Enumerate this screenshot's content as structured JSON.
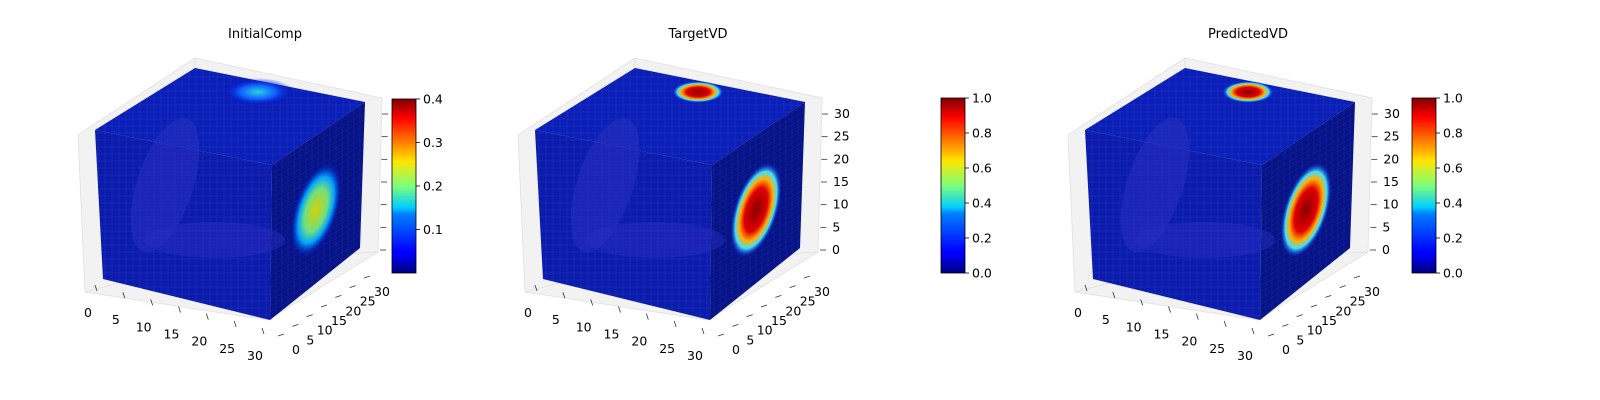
{
  "chart_data": [
    {
      "type": "voxel3d",
      "title": "InitialComp",
      "x_ticks": [
        "0",
        "5",
        "10",
        "15",
        "20",
        "25",
        "30"
      ],
      "y_ticks": [
        "0",
        "5",
        "10",
        "15",
        "20",
        "25",
        "30"
      ],
      "z_ticks": [],
      "colorbar": {
        "min": 0.0,
        "max": 0.4,
        "ticks": [
          "0.1",
          "0.2",
          "0.3",
          "0.4"
        ],
        "cmap": "jet"
      },
      "features": {
        "top_spot": {
          "value": 0.18
        },
        "side_spot": {
          "value": 0.3
        }
      }
    },
    {
      "type": "voxel3d",
      "title": "TargetVD",
      "x_ticks": [
        "0",
        "5",
        "10",
        "15",
        "20",
        "25",
        "30"
      ],
      "y_ticks": [
        "0",
        "5",
        "10",
        "15",
        "20",
        "25",
        "30"
      ],
      "z_ticks": [
        "0",
        "5",
        "10",
        "15",
        "20",
        "25",
        "30"
      ],
      "colorbar": {
        "min": 0.0,
        "max": 1.0,
        "ticks": [
          "0.0",
          "0.2",
          "0.4",
          "0.6",
          "0.8",
          "1.0"
        ],
        "cmap": "jet"
      },
      "features": {
        "top_spot": {
          "value": 1.0
        },
        "side_spot": {
          "value": 1.0
        }
      }
    },
    {
      "type": "voxel3d",
      "title": "PredictedVD",
      "x_ticks": [
        "0",
        "5",
        "10",
        "15",
        "20",
        "25",
        "30"
      ],
      "y_ticks": [
        "0",
        "5",
        "10",
        "15",
        "20",
        "25",
        "30"
      ],
      "z_ticks": [
        "0",
        "5",
        "10",
        "15",
        "20",
        "25",
        "30"
      ],
      "colorbar": {
        "min": 0.0,
        "max": 1.0,
        "ticks": [
          "0.0",
          "0.2",
          "0.4",
          "0.6",
          "0.8",
          "1.0"
        ],
        "cmap": "jet"
      },
      "features": {
        "top_spot": {
          "value": 0.9
        },
        "side_spot": {
          "value": 1.0
        }
      }
    }
  ]
}
